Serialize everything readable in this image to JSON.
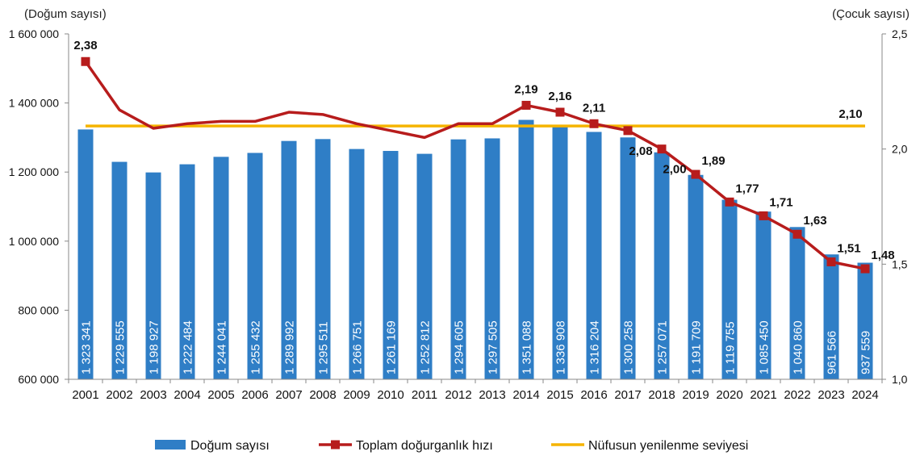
{
  "chart_data": {
    "type": "bar+line",
    "left_axis_title": "(Doğum sayısı)",
    "right_axis_title": "(Çocuk sayısı)",
    "left_ylim": [
      600000,
      1600000
    ],
    "left_ticks": [
      "600 000",
      "800 000",
      "1 000 000",
      "1 200 000",
      "1 400 000",
      "1 600 000"
    ],
    "left_tick_values": [
      600000,
      800000,
      1000000,
      1200000,
      1400000,
      1600000
    ],
    "right_ylim": [
      1.0,
      2.5
    ],
    "right_ticks": [
      "1,0",
      "1,5",
      "2,0",
      "2,5"
    ],
    "right_tick_values": [
      1.0,
      1.5,
      2.0,
      2.5
    ],
    "categories": [
      "2001",
      "2002",
      "2003",
      "2004",
      "2005",
      "2006",
      "2007",
      "2008",
      "2009",
      "2010",
      "2011",
      "2012",
      "2013",
      "2014",
      "2015",
      "2016",
      "2017",
      "2018",
      "2019",
      "2020",
      "2021",
      "2022",
      "2023",
      "2024"
    ],
    "grid": false,
    "legend_position": "bottom",
    "series": [
      {
        "name": "Doğum sayısı",
        "type": "bar",
        "axis": "left",
        "color": "#2f7ec6",
        "values": [
          1323341,
          1229555,
          1198927,
          1222484,
          1244041,
          1255432,
          1289992,
          1295511,
          1266751,
          1261169,
          1252812,
          1294605,
          1297505,
          1351088,
          1336908,
          1316204,
          1300258,
          1257071,
          1191709,
          1119755,
          1085450,
          1040860,
          961566,
          937559
        ],
        "labels": [
          "1 323 341",
          "1 229 555",
          "1 198 927",
          "1 222 484",
          "1 244 041",
          "1 255 432",
          "1 289 992",
          "1 295 511",
          "1 266 751",
          "1 261 169",
          "1 252 812",
          "1 294 605",
          "1 297 505",
          "1 351 088",
          "1 336 908",
          "1 316 204",
          "1 300 258",
          "1 257 071",
          "1 191 709",
          "1 119 755",
          "1 085 450",
          "1 040 860",
          "961 566",
          "937 559"
        ]
      },
      {
        "name": "Toplam doğurganlık hızı",
        "type": "line",
        "axis": "right",
        "color": "#b71c1c",
        "values": [
          2.38,
          2.17,
          2.09,
          2.11,
          2.12,
          2.12,
          2.16,
          2.15,
          2.11,
          2.08,
          2.05,
          2.11,
          2.11,
          2.19,
          2.16,
          2.11,
          2.08,
          2.0,
          1.89,
          1.77,
          1.71,
          1.63,
          1.51,
          1.48
        ],
        "labels": [
          "2,38",
          "",
          "",
          "",
          "",
          "",
          "",
          "",
          "",
          "",
          "",
          "",
          "",
          "2,19",
          "2,16",
          "2,11",
          "2,08",
          "2,00",
          "1,89",
          "1,77",
          "1,71",
          "1,63",
          "1,51",
          "1,48"
        ]
      },
      {
        "name": "Nüfusun yenilenme seviyesi",
        "type": "line",
        "axis": "right",
        "color": "#f5b400",
        "value": 2.1,
        "label": "2,10"
      }
    ]
  }
}
